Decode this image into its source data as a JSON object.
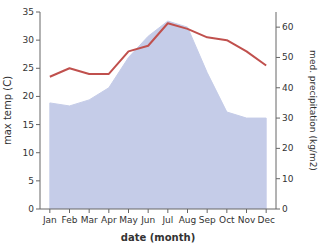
{
  "chart_data": {
    "type": "line",
    "categories": [
      "Jan",
      "Feb",
      "Mar",
      "Apr",
      "May",
      "Jun",
      "Jul",
      "Aug",
      "Sep",
      "Oct",
      "Nov",
      "Dec"
    ],
    "series": [
      {
        "type": "area",
        "axis": "y2",
        "color": "#c5cce8",
        "values": [
          35,
          34,
          36,
          40,
          50,
          57,
          62,
          60,
          45,
          32,
          30,
          30
        ]
      },
      {
        "type": "line",
        "color": "#c0504d",
        "values": [
          23.5,
          25,
          24,
          24,
          28,
          29,
          33,
          32,
          30.5,
          30,
          28,
          25.5
        ]
      }
    ],
    "xlabel": "date (month)",
    "ylabel": "max temp (C)",
    "y2label": "med. precipitation (kg/m2)",
    "ylim": [
      0,
      35
    ],
    "yticks": [
      0,
      5,
      10,
      15,
      20,
      25,
      30,
      35
    ],
    "y2lim": [
      0,
      65
    ],
    "y2ticks": [
      0,
      10,
      20,
      30,
      40,
      50,
      60
    ],
    "grid": false
  }
}
